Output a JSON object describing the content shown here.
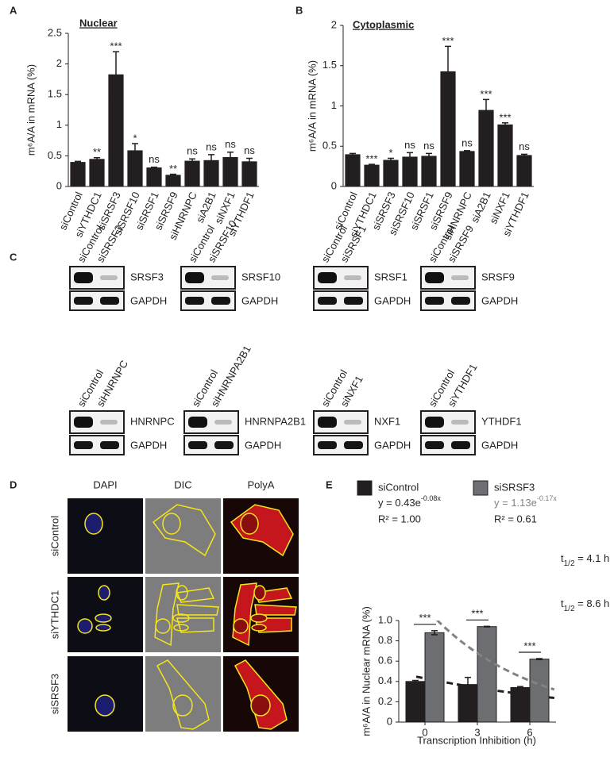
{
  "panels": [
    "A",
    "B",
    "C",
    "D",
    "E"
  ],
  "chart_data": [
    {
      "type": "bar",
      "title": "Nuclear",
      "ylabel": "m⁶A/A in mRNA (%)",
      "color": "#231f20",
      "categories": [
        "siControl",
        "siYTHDC1",
        "siSRSF3",
        "siSRSF10",
        "siSRSF1",
        "siSRSF9",
        "siHNRNPC",
        "siA2B1",
        "siNXF1",
        "siYTHDF1"
      ],
      "values": [
        0.4,
        0.45,
        1.83,
        0.59,
        0.31,
        0.19,
        0.42,
        0.43,
        0.48,
        0.41
      ],
      "errors": [
        0.01,
        0.02,
        0.37,
        0.11,
        0.005,
        0.01,
        0.03,
        0.09,
        0.08,
        0.05
      ],
      "annotations": [
        null,
        "**",
        "***",
        "*",
        "ns",
        "**",
        "ns",
        "ns",
        "ns",
        "ns"
      ],
      "ylim": [
        0,
        2.5
      ],
      "yticks": [
        0,
        0.5,
        1,
        1.5,
        2,
        2.5
      ]
    },
    {
      "type": "bar",
      "title": "Cytoplasmic",
      "ylabel": "m⁶A/A in mRNA (%)",
      "color": "#231f20",
      "categories": [
        "siControl",
        "siYTHDC1",
        "siSRSF3",
        "siSRSF10",
        "siSRSF1",
        "siSRSF9",
        "siHNRNPC",
        "siA2B1",
        "siNXF1",
        "siYTHDF1"
      ],
      "values": [
        0.4,
        0.27,
        0.33,
        0.37,
        0.38,
        1.43,
        0.44,
        0.95,
        0.77,
        0.39
      ],
      "errors": [
        0.01,
        0.005,
        0.02,
        0.05,
        0.03,
        0.31,
        0.005,
        0.13,
        0.02,
        0.01
      ],
      "annotations": [
        null,
        "***",
        "*",
        "ns",
        "ns",
        "***",
        "ns",
        "***",
        "***",
        "ns"
      ],
      "ylim": [
        0,
        2
      ],
      "yticks": [
        0,
        0.5,
        1,
        1.5,
        2
      ]
    },
    {
      "type": "grouped_bar",
      "ylabel": "m⁶A/A in Nuclear mRNA (%)",
      "xlabel": "Transcription Inhibition (h)",
      "x": [
        0,
        3,
        6
      ],
      "xlim": [
        -1.5,
        7.5
      ],
      "xticks": [
        0,
        3,
        6
      ],
      "ylim": [
        0,
        1
      ],
      "yticks": [
        0,
        0.2,
        0.4,
        0.6,
        0.8,
        {
          "value": 1,
          "label": "1.0"
        }
      ],
      "significance": [
        "***",
        "***",
        "***"
      ],
      "series": [
        {
          "name": "siControl",
          "color": "#231f20",
          "values": [
            0.4,
            0.37,
            0.34
          ],
          "errors": [
            0.01,
            0.07,
            0.01
          ],
          "fit": {
            "prefix": "y = ",
            "a": 0.43,
            "base": "e",
            "b": -0.08,
            "var": "x",
            "r2": "R² = 1.00"
          },
          "half_life": {
            "symbol": "t",
            "subscript": "1/2",
            "text": " = 8.6 h"
          }
        },
        {
          "name": "siSRSF3",
          "color": "#6d6e71",
          "values": [
            0.88,
            0.94,
            0.62
          ],
          "errors": [
            0.02,
            0.003,
            0.005
          ],
          "fit": {
            "prefix": "y = ",
            "a": 1.13,
            "base": "e",
            "b": -0.17,
            "var": "x",
            "r2": "R² = 0.61"
          },
          "half_life": {
            "symbol": "t",
            "subscript": "1/2",
            "text": " = 4.1 h"
          }
        }
      ]
    }
  ],
  "blots": [
    {
      "lanes": [
        "siControl",
        "siSRSF3"
      ],
      "target": "SRSF3",
      "control": "GAPDH"
    },
    {
      "lanes": [
        "siControl",
        "siSRSF10"
      ],
      "target": "SRSF10",
      "control": "GAPDH"
    },
    {
      "lanes": [
        "siControl",
        "siSRSF1"
      ],
      "target": "SRSF1",
      "control": "GAPDH"
    },
    {
      "lanes": [
        "siControl",
        "siSRSF9"
      ],
      "target": "SRSF9",
      "control": "GAPDH"
    },
    {
      "lanes": [
        "siControl",
        "siHNRNPC"
      ],
      "target": "HNRNPC",
      "control": "GAPDH"
    },
    {
      "lanes": [
        "siControl",
        "siHNRNPA2B1"
      ],
      "target": "HNRNPA2B1",
      "control": "GAPDH"
    },
    {
      "lanes": [
        "siControl",
        "siNXF1"
      ],
      "target": "NXF1",
      "control": "GAPDH"
    },
    {
      "lanes": [
        "siControl",
        "siYTHDF1"
      ],
      "target": "YTHDF1",
      "control": "GAPDH"
    }
  ],
  "microscopy": {
    "columns": [
      "DAPI",
      "DIC",
      "PolyA"
    ],
    "rows": [
      "siControl",
      "siYTHDC1",
      "siSRSF3"
    ]
  }
}
